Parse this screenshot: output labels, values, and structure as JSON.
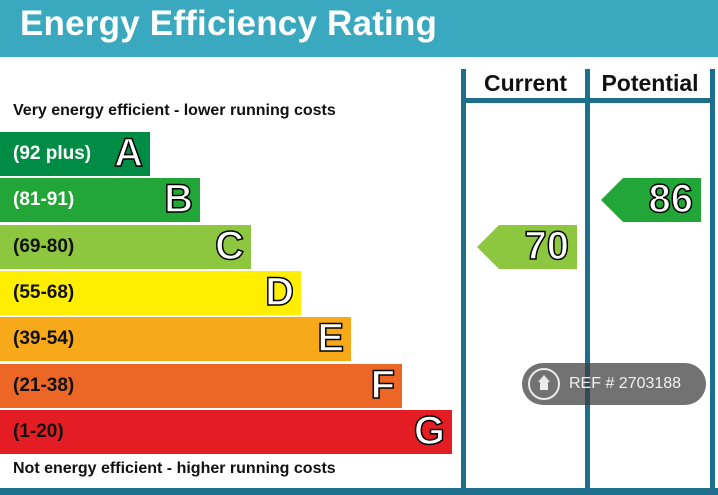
{
  "title": "Energy Efficiency Rating",
  "columns": {
    "current": "Current",
    "potential": "Potential"
  },
  "top_caption": "Very energy efficient - lower running costs",
  "bottom_caption": "Not energy efficient - higher running costs",
  "chart_data": {
    "type": "bar",
    "title": "Energy Efficiency Rating",
    "bands": [
      {
        "letter": "A",
        "range": "(92 plus)",
        "min": 92,
        "max": 100,
        "color": "#008c44",
        "text_color": "#ffffff"
      },
      {
        "letter": "B",
        "range": "(81-91)",
        "min": 81,
        "max": 91,
        "color": "#21a637",
        "text_color": "#ffffff"
      },
      {
        "letter": "C",
        "range": "(69-80)",
        "min": 69,
        "max": 80,
        "color": "#8dc63f",
        "text_color": "#111111"
      },
      {
        "letter": "D",
        "range": "(55-68)",
        "min": 55,
        "max": 68,
        "color": "#ffee00",
        "text_color": "#111111"
      },
      {
        "letter": "E",
        "range": "(39-54)",
        "min": 39,
        "max": 54,
        "color": "#f7a91a",
        "text_color": "#111111"
      },
      {
        "letter": "F",
        "range": "(21-38)",
        "min": 21,
        "max": 38,
        "color": "#ec6725",
        "text_color": "#111111"
      },
      {
        "letter": "G",
        "range": "(1-20)",
        "min": 1,
        "max": 20,
        "color": "#e31d23",
        "text_color": "#111111"
      }
    ],
    "current": {
      "value": 70,
      "band": "C",
      "color": "#8dc63f"
    },
    "potential": {
      "value": 86,
      "band": "B",
      "color": "#21a637"
    }
  },
  "watermark": {
    "icon": "home-icon",
    "text": "REF # 2703188"
  }
}
